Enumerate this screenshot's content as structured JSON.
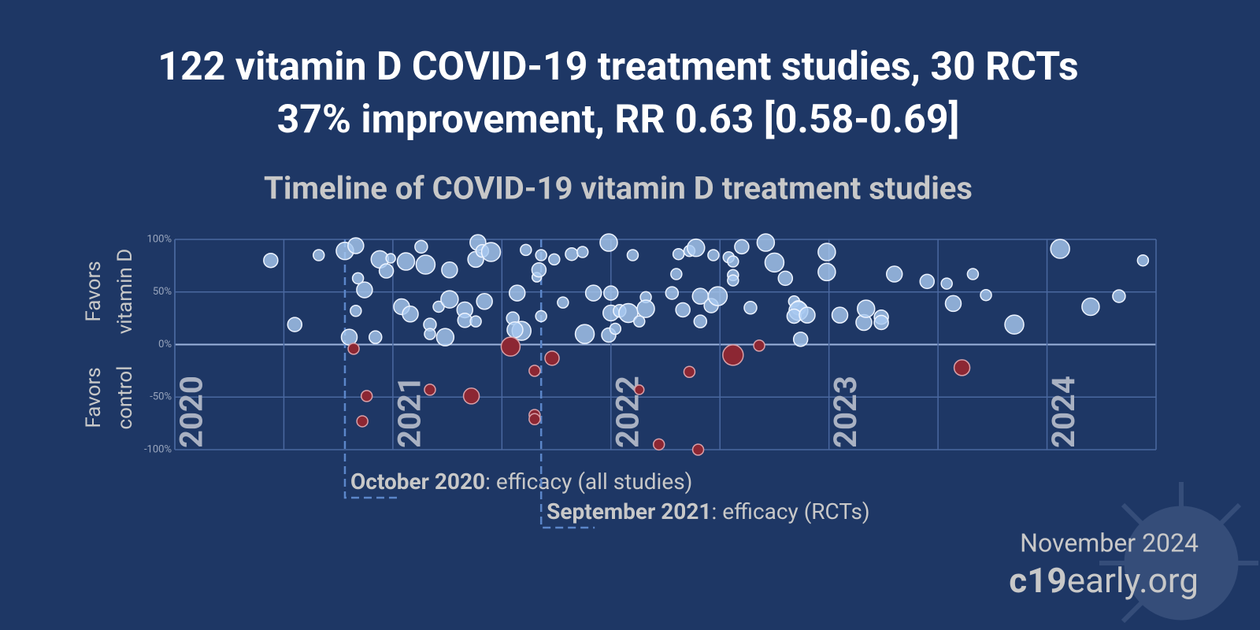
{
  "chart_data": {
    "type": "scatter",
    "title": [
      "122 vitamin D COVID-19 treatment studies, 30 RCTs",
      "37% improvement, RR 0.63 [0.58-0.69]"
    ],
    "subtitle": "Timeline of COVID-19 vitamin D treatment studies",
    "y_label_top": [
      "Favors",
      "vitamin D"
    ],
    "y_label_bottom": [
      "Favors",
      "control"
    ],
    "x": [
      2020.44,
      2020.55,
      2020.66,
      2020.78,
      2020.83,
      2020.83,
      2020.84,
      2020.87,
      2020.8,
      2020.92,
      2020.94,
      2020.97,
      2020.99,
      2021.04,
      2021.06,
      2021.08,
      2021.13,
      2021.15,
      2021.17,
      2021.17,
      2021.24,
      2021.26,
      2021.21,
      2021.26,
      2021.33,
      2021.33,
      2021.38,
      2021.39,
      2021.38,
      2021.41,
      2021.45,
      2021.42,
      2021.57,
      2021.55,
      2021.59,
      2021.56,
      2021.61,
      2021.66,
      2021.67,
      2021.68,
      2021.68,
      2021.74,
      2021.78,
      2021.82,
      2021.87,
      2021.92,
      2021.88,
      2021.99,
      2022.0,
      2022.0,
      2021.99,
      2022.02,
      2022.04,
      2022.08,
      2022.1,
      2022.13,
      2022.16,
      2022.16,
      2022.28,
      2022.3,
      2022.31,
      2022.33,
      2022.36,
      2022.39,
      2022.41,
      2022.41,
      2022.46,
      2022.49,
      2022.47,
      2022.54,
      2022.56,
      2022.56,
      2022.56,
      2022.6,
      2022.64,
      2022.71,
      2022.75,
      2022.8,
      2022.84,
      2022.86,
      2022.86,
      2022.84,
      2022.9,
      2022.87,
      2022.99,
      2022.99,
      2023.05,
      2023.16,
      2023.17,
      2023.24,
      2023.24,
      2023.3,
      2023.45,
      2023.54,
      2023.57,
      2023.66,
      2023.72,
      2023.85,
      2024.06,
      2024.2,
      2024.33,
      2024.44,
      2020.82,
      2020.88,
      2020.86,
      2021.17,
      2021.36,
      2021.54,
      2021.65,
      2021.65,
      2021.65,
      2021.73,
      2022.13,
      2022.22,
      2022.36,
      2022.4,
      2022.56,
      2022.68,
      2023.61
    ],
    "y": [
      80,
      19,
      85,
      89,
      94,
      32,
      63,
      52,
      7,
      7,
      81,
      70,
      82,
      36,
      79,
      29,
      93,
      76,
      19,
      10,
      7,
      71,
      36,
      43,
      33,
      23,
      22,
      97,
      81,
      89,
      88,
      41,
      49,
      25,
      13,
      14,
      90,
      64,
      71,
      85,
      27,
      81,
      40,
      86,
      88,
      49,
      10,
      97,
      49,
      30,
      9,
      15,
      32,
      30,
      85,
      22,
      45,
      34,
      49,
      67,
      86,
      33,
      89,
      92,
      22,
      46,
      37,
      46,
      85,
      83,
      79,
      66,
      61,
      93,
      35,
      97,
      78,
      63,
      41,
      35,
      32,
      27,
      28,
      5,
      88,
      69,
      28,
      21,
      34,
      26,
      21,
      67,
      60,
      58,
      39,
      67,
      47,
      19,
      91,
      36,
      46,
      80,
      -4,
      -49,
      -73,
      -43,
      -49,
      -2,
      -25,
      -67,
      -71,
      -13,
      -43,
      -95,
      -26,
      -100,
      -10,
      -1,
      -22
    ],
    "sizes": [
      9,
      9,
      7,
      11,
      10,
      7,
      7,
      10,
      10,
      8,
      11,
      9,
      6,
      10,
      11,
      10,
      8,
      12,
      8,
      7,
      11,
      10,
      7,
      11,
      10,
      9,
      7,
      10,
      10,
      8,
      12,
      10,
      10,
      8,
      12,
      10,
      7,
      6,
      9,
      7,
      7,
      7,
      7,
      8,
      7,
      10,
      12,
      11,
      9,
      10,
      9,
      7,
      8,
      12,
      7,
      7,
      7,
      11,
      8,
      7,
      7,
      9,
      7,
      11,
      8,
      10,
      9,
      12,
      7,
      7,
      7,
      7,
      7,
      9,
      8,
      11,
      12,
      9,
      7,
      9,
      12,
      9,
      10,
      9,
      11,
      11,
      10,
      10,
      11,
      9,
      9,
      10,
      9,
      7,
      10,
      7,
      7,
      12,
      12,
      11,
      8,
      7,
      7,
      7,
      7,
      7,
      10,
      12,
      7,
      7,
      7,
      9,
      6,
      7,
      7,
      7,
      13,
      7,
      10
    ],
    "color": "#a9c9f0",
    "negative_color": "#8c2733",
    "xlim": [
      2020,
      2024.5
    ],
    "xticks": [
      2020,
      2021,
      2022,
      2023,
      2024
    ],
    "xgrid_minor": [
      2020.5,
      2021.5,
      2022.5,
      2023.5,
      2024.5
    ],
    "ylim": [
      -100,
      100
    ],
    "yticks": [
      {
        "value": 100,
        "label": "100%"
      },
      {
        "value": 50,
        "label": "50%"
      },
      {
        "value": 0,
        "label": "0%"
      },
      {
        "value": -50,
        "label": "-50%"
      },
      {
        "value": -100,
        "label": "-100%"
      }
    ],
    "grid": true,
    "annotations": [
      {
        "x": 2020.78,
        "bold": "October 2020",
        "text": ": efficacy (all studies)"
      },
      {
        "x": 2021.68,
        "bold": "September 2021",
        "text": ": efficacy (RCTs)"
      }
    ],
    "date": "November 2024",
    "site": [
      "c19",
      "early.org"
    ]
  }
}
